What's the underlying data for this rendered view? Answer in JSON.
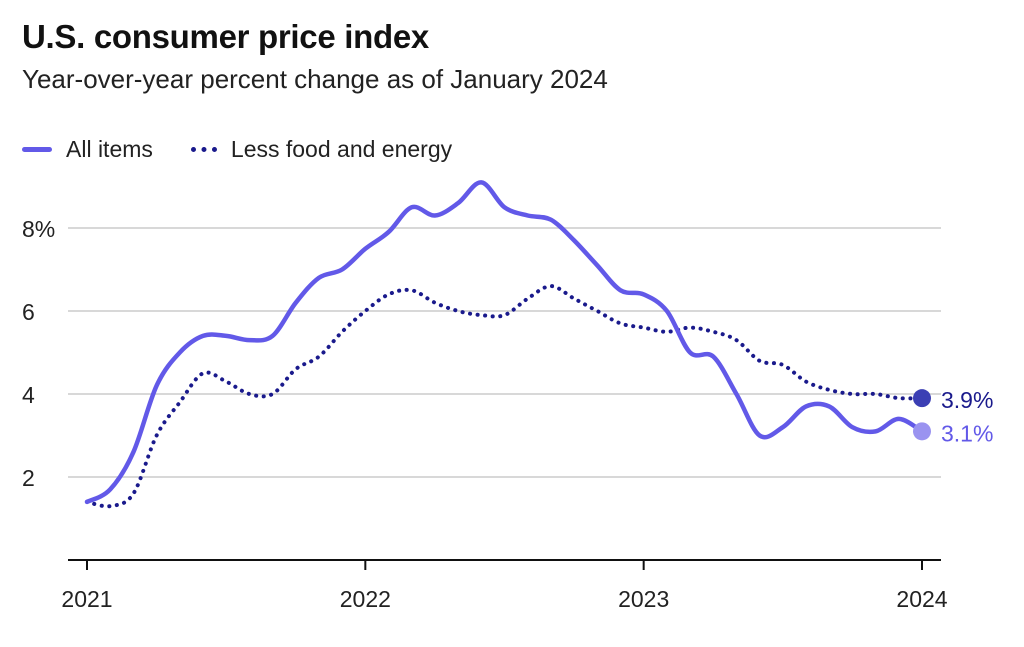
{
  "colors": {
    "all_items": "#6259e8",
    "core": "#1a1a8c",
    "all_items_end_dot": "#9a93f0",
    "core_end_dot": "#3b3fb4",
    "grid": "#cccccc",
    "axis": "#111111",
    "text": "#222222"
  },
  "chart_data": {
    "type": "line",
    "title": "U.S. consumer price index",
    "subtitle": "Year-over-year percent change as of January 2024",
    "xlabel": "",
    "ylabel": "",
    "x_ticks": [
      "2021",
      "2022",
      "2023",
      "2024"
    ],
    "y_ticks": [
      "2",
      "4",
      "6",
      "8%"
    ],
    "y_tick_values": [
      2,
      4,
      6,
      8
    ],
    "ylim": [
      0,
      9.5
    ],
    "grid": true,
    "legend_position": "top-left",
    "x": [
      "2021-01",
      "2021-02",
      "2021-03",
      "2021-04",
      "2021-05",
      "2021-06",
      "2021-07",
      "2021-08",
      "2021-09",
      "2021-10",
      "2021-11",
      "2021-12",
      "2022-01",
      "2022-02",
      "2022-03",
      "2022-04",
      "2022-05",
      "2022-06",
      "2022-07",
      "2022-08",
      "2022-09",
      "2022-10",
      "2022-11",
      "2022-12",
      "2023-01",
      "2023-02",
      "2023-03",
      "2023-04",
      "2023-05",
      "2023-06",
      "2023-07",
      "2023-08",
      "2023-09",
      "2023-10",
      "2023-11",
      "2023-12",
      "2024-01"
    ],
    "series": [
      {
        "name": "All items",
        "style": "solid",
        "values": [
          1.4,
          1.7,
          2.6,
          4.2,
          5.0,
          5.4,
          5.4,
          5.3,
          5.4,
          6.2,
          6.8,
          7.0,
          7.5,
          7.9,
          8.5,
          8.3,
          8.6,
          9.1,
          8.5,
          8.3,
          8.2,
          7.7,
          7.1,
          6.5,
          6.4,
          6.0,
          5.0,
          4.9,
          4.0,
          3.0,
          3.2,
          3.7,
          3.7,
          3.2,
          3.1,
          3.4,
          3.1
        ],
        "end_label": "3.1%"
      },
      {
        "name": "Less food and energy",
        "style": "dotted",
        "values": [
          1.4,
          1.3,
          1.6,
          3.0,
          3.8,
          4.5,
          4.3,
          4.0,
          4.0,
          4.6,
          4.9,
          5.5,
          6.0,
          6.4,
          6.5,
          6.2,
          6.0,
          5.9,
          5.9,
          6.3,
          6.6,
          6.3,
          6.0,
          5.7,
          5.6,
          5.5,
          5.6,
          5.5,
          5.3,
          4.8,
          4.7,
          4.3,
          4.1,
          4.0,
          4.0,
          3.9,
          3.9
        ],
        "end_label": "3.9%"
      }
    ]
  }
}
